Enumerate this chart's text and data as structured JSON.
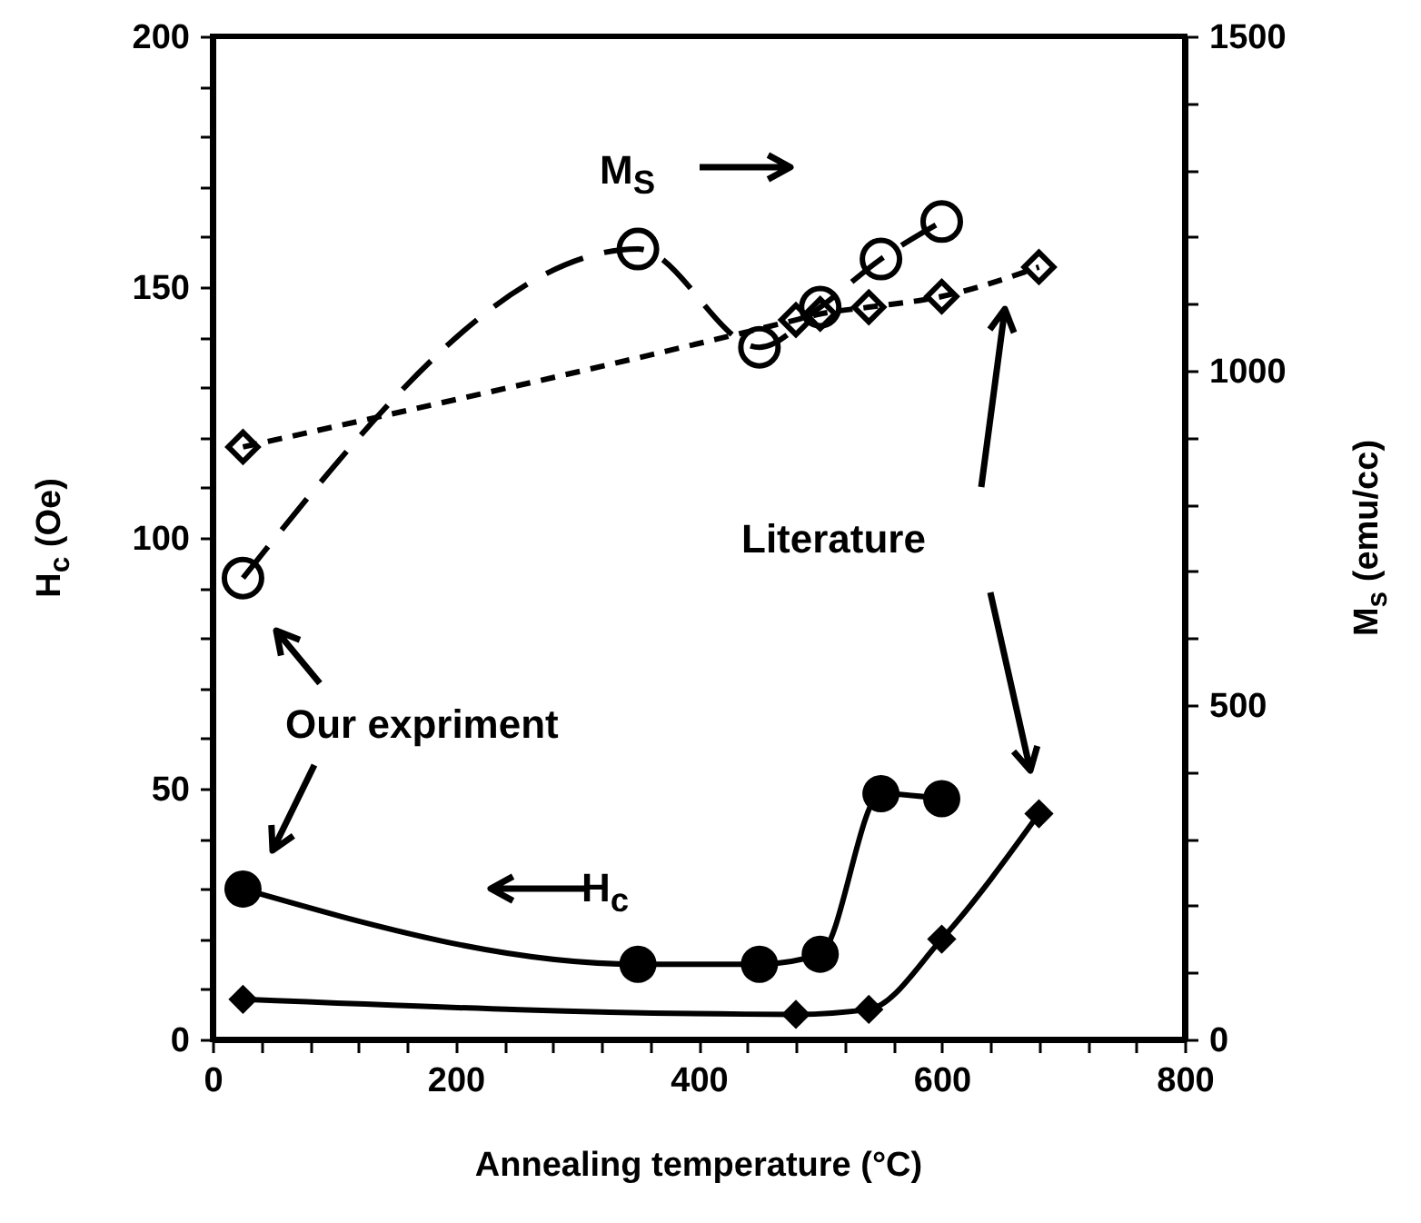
{
  "chart_data": {
    "type": "line",
    "xlabel": "Annealing temperature (°C)",
    "ylabel": "H$_{c}$ (Oe)",
    "y2label": "M$_{s}$ (emu/cc)",
    "annotations": [
      "M$_{S}$",
      "H$_{c}$",
      "Our expriment",
      "Literature"
    ],
    "xlim": [
      0,
      800
    ],
    "ylim": [
      0,
      200
    ],
    "y2lim": [
      0,
      1500
    ],
    "xticks": [
      0,
      {
        "value": 40,
        "label": null
      },
      {
        "value": 80,
        "label": null
      },
      {
        "value": 120,
        "label": null
      },
      {
        "value": 160,
        "label": null
      },
      200,
      {
        "value": 240,
        "label": null
      },
      {
        "value": 280,
        "label": null
      },
      {
        "value": 320,
        "label": null
      },
      {
        "value": 360,
        "label": null
      },
      400,
      {
        "value": 440,
        "label": null
      },
      {
        "value": 480,
        "label": null
      },
      {
        "value": 520,
        "label": null
      },
      {
        "value": 560,
        "label": null
      },
      600,
      {
        "value": 640,
        "label": null
      },
      {
        "value": 680,
        "label": null
      },
      {
        "value": 720,
        "label": null
      },
      {
        "value": 760,
        "label": null
      },
      800
    ],
    "yticks": [
      0,
      {
        "value": 10,
        "label": null
      },
      {
        "value": 20,
        "label": null
      },
      {
        "value": 30,
        "label": null
      },
      {
        "value": 40,
        "label": null
      },
      50,
      {
        "value": 60,
        "label": null
      },
      {
        "value": 70,
        "label": null
      },
      {
        "value": 80,
        "label": null
      },
      {
        "value": 90,
        "label": null
      },
      100,
      {
        "value": 110,
        "label": null
      },
      {
        "value": 120,
        "label": null
      },
      {
        "value": 130,
        "label": null
      },
      {
        "value": 140,
        "label": null
      },
      150,
      {
        "value": 160,
        "label": null
      },
      {
        "value": 170,
        "label": null
      },
      {
        "value": 180,
        "label": null
      },
      {
        "value": 190,
        "label": null
      },
      200
    ],
    "y2ticks": [
      0,
      {
        "value": 100,
        "label": null
      },
      {
        "value": 200,
        "label": null
      },
      {
        "value": 300,
        "label": null
      },
      {
        "value": 400,
        "label": null
      },
      500,
      {
        "value": 600,
        "label": null
      },
      {
        "value": 700,
        "label": null
      },
      {
        "value": 800,
        "label": null
      },
      {
        "value": 900,
        "label": null
      },
      1000,
      {
        "value": 1100,
        "label": null
      },
      {
        "value": 1200,
        "label": null
      },
      {
        "value": 1300,
        "label": null
      },
      {
        "value": 1400,
        "label": null
      },
      1500
    ],
    "grid": false,
    "series": [
      {
        "color": "#000000",
        "x": [
          25,
          350,
          450,
          500,
          550,
          600
        ],
        "values": [
          30,
          15,
          15,
          17,
          49,
          48
        ],
        "marker": "circle",
        "line_style": "solid"
      },
      {
        "color": "#000000",
        "x": [
          25,
          480,
          540,
          600,
          680
        ],
        "values": [
          8,
          5,
          6,
          20,
          45
        ],
        "marker": "diamond",
        "line_style": "solid"
      },
      {
        "color": "#000000",
        "axis": "y2",
        "x": [
          25,
          350,
          450,
          500,
          550,
          600
        ],
        "values": [
          690,
          1182,
          1035,
          1095,
          1167,
          1223
        ],
        "marker": "circle",
        "line_style": "dashed"
      },
      {
        "color": "#000000",
        "axis": "y2",
        "x": [
          25,
          480,
          500,
          540,
          600,
          680
        ],
        "values": [
          886,
          1076,
          1085,
          1095,
          1111,
          1155
        ],
        "marker": "diamond",
        "line_style": "dotted"
      }
    ]
  }
}
